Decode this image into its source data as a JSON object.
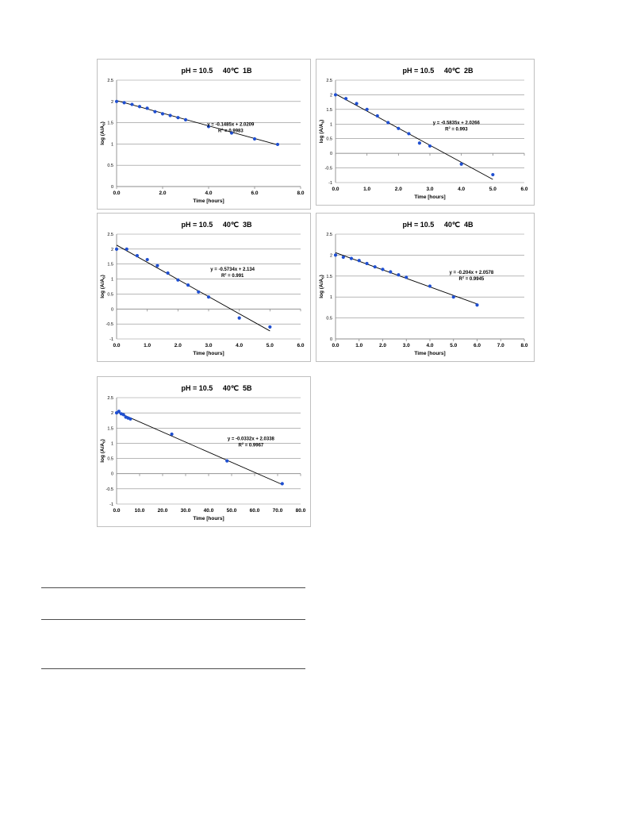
{
  "chart_data": [
    {
      "type": "scatter",
      "title": "pH = 10.5     40℃  1B",
      "xlabel": "Time [hours]",
      "ylabel": "log (A/A0)",
      "ylabel_sub": "0",
      "equation": "y = -0.1485x + 2.0209",
      "r2_value": " = 0.9983",
      "xlim": [
        0,
        8
      ],
      "ylim": [
        0,
        2.5
      ],
      "x_ticks": [
        "0.0",
        "2.0",
        "4.0",
        "6.0",
        "8.0"
      ],
      "x_tick_values": [
        0,
        2,
        4,
        6,
        8
      ],
      "y_ticks": [
        "0",
        "0.5",
        "1",
        "1.5",
        "2",
        "2.5"
      ],
      "y_tick_values": [
        0,
        0.5,
        1,
        1.5,
        2,
        2.5
      ],
      "x": [
        0,
        0.33,
        0.67,
        1.0,
        1.33,
        1.67,
        2.0,
        2.33,
        2.67,
        3.0,
        4.0,
        5.0,
        6.0,
        7.0
      ],
      "y": [
        2.0,
        1.97,
        1.93,
        1.88,
        1.84,
        1.76,
        1.71,
        1.67,
        1.62,
        1.57,
        1.41,
        1.26,
        1.12,
        0.99
      ],
      "trendline": {
        "slope": -0.1485,
        "intercept": 2.0209,
        "x_range": [
          0,
          7
        ]
      },
      "grid": true,
      "legend": "none"
    },
    {
      "type": "scatter",
      "title": "pH = 10.5     40℃  2B",
      "xlabel": "Time [hours]",
      "ylabel": "log (A/A0)",
      "ylabel_sub": "0",
      "equation": "y = -0.5835x + 2.0266",
      "r2_value": " = 0.993",
      "xlim": [
        0,
        6
      ],
      "ylim": [
        -1,
        2.5
      ],
      "x_ticks": [
        "0.0",
        "1.0",
        "2.0",
        "3.0",
        "4.0",
        "5.0",
        "6.0"
      ],
      "x_tick_values": [
        0,
        1,
        2,
        3,
        4,
        5,
        6
      ],
      "y_ticks": [
        "-1",
        "-0.5",
        "0",
        "0.5",
        "1",
        "1.5",
        "2",
        "2.5"
      ],
      "y_tick_values": [
        -1,
        -0.5,
        0,
        0.5,
        1,
        1.5,
        2,
        2.5
      ],
      "x": [
        0,
        0.33,
        0.67,
        1.0,
        1.33,
        1.67,
        2.0,
        2.33,
        2.67,
        3.0,
        4.0,
        5.0
      ],
      "y": [
        2.0,
        1.87,
        1.7,
        1.5,
        1.28,
        1.05,
        0.85,
        0.67,
        0.35,
        0.25,
        -0.37,
        -0.73
      ],
      "trendline": {
        "slope": -0.5835,
        "intercept": 2.0266,
        "x_range": [
          0,
          5
        ]
      },
      "grid": true,
      "legend": "none"
    },
    {
      "type": "scatter",
      "title": "pH = 10.5     40℃  3B",
      "xlabel": "Time [hours]",
      "ylabel": "log (A/A0)",
      "ylabel_sub": "0",
      "equation": "y = -0.5734x + 2.134",
      "r2_value": " = 0.991",
      "xlim": [
        0,
        6
      ],
      "ylim": [
        -1,
        2.5
      ],
      "x_ticks": [
        "0.0",
        "1.0",
        "2.0",
        "3.0",
        "4.0",
        "5.0",
        "6.0"
      ],
      "x_tick_values": [
        0,
        1,
        2,
        3,
        4,
        5,
        6
      ],
      "y_ticks": [
        "-1",
        "-0.5",
        "0",
        "0.5",
        "1",
        "1.5",
        "2",
        "2.5"
      ],
      "y_tick_values": [
        -1,
        -0.5,
        0,
        0.5,
        1,
        1.5,
        2,
        2.5
      ],
      "x": [
        0,
        0.33,
        0.67,
        1.0,
        1.33,
        1.67,
        2.0,
        2.33,
        2.67,
        3.0,
        4.0,
        5.0
      ],
      "y": [
        2.0,
        2.0,
        1.78,
        1.65,
        1.45,
        1.2,
        0.97,
        0.8,
        0.57,
        0.4,
        -0.3,
        -0.6
      ],
      "trendline": {
        "slope": -0.5734,
        "intercept": 2.134,
        "x_range": [
          0,
          5
        ]
      },
      "grid": true,
      "legend": "none"
    },
    {
      "type": "scatter",
      "title": "pH = 10.5     40℃  4B",
      "xlabel": "Time [hours]",
      "ylabel": "log (A/A0)",
      "ylabel_sub": "0",
      "equation": "y = -0.204x + 2.0578",
      "r2_value": " = 0.9945",
      "xlim": [
        0,
        8
      ],
      "ylim": [
        0,
        2.5
      ],
      "x_ticks": [
        "0.0",
        "1.0",
        "2.0",
        "3.0",
        "4.0",
        "5.0",
        "6.0",
        "7.0",
        "8.0"
      ],
      "x_tick_values": [
        0,
        1,
        2,
        3,
        4,
        5,
        6,
        7,
        8
      ],
      "y_ticks": [
        "0",
        "0.5",
        "1",
        "1.5",
        "2",
        "2.5"
      ],
      "y_tick_values": [
        0,
        0.5,
        1,
        1.5,
        2,
        2.5
      ],
      "x": [
        0,
        0.33,
        0.67,
        1.0,
        1.33,
        1.67,
        2.0,
        2.33,
        2.67,
        3.0,
        4.0,
        5.0,
        6.0
      ],
      "y": [
        2.0,
        1.95,
        1.92,
        1.87,
        1.8,
        1.72,
        1.66,
        1.6,
        1.53,
        1.47,
        1.26,
        1.0,
        0.81
      ],
      "trendline": {
        "slope": -0.204,
        "intercept": 2.0578,
        "x_range": [
          0,
          6
        ]
      },
      "grid": true,
      "legend": "none"
    },
    {
      "type": "scatter",
      "title": "pH = 10.5     40℃  5B",
      "xlabel": "Time [hours]",
      "ylabel": "log (A/A0)",
      "ylabel_sub": "0",
      "equation": "y = -0.0332x + 2.0338",
      "r2_value": " = 0.9967",
      "xlim": [
        0,
        80
      ],
      "ylim": [
        -1,
        2.5
      ],
      "x_ticks": [
        "0.0",
        "10.0",
        "20.0",
        "30.0",
        "40.0",
        "50.0",
        "60.0",
        "70.0",
        "80.0"
      ],
      "x_tick_values": [
        0,
        10,
        20,
        30,
        40,
        50,
        60,
        70,
        80
      ],
      "y_ticks": [
        "-1",
        "-0.5",
        "0",
        "0.5",
        "1",
        "1.5",
        "2",
        "2.5"
      ],
      "y_tick_values": [
        -1,
        -0.5,
        0,
        0.5,
        1,
        1.5,
        2,
        2.5
      ],
      "x": [
        0,
        1,
        2,
        3,
        4,
        5,
        6,
        24,
        48,
        72
      ],
      "y": [
        2.0,
        2.05,
        1.97,
        1.94,
        1.86,
        1.83,
        1.8,
        1.3,
        0.42,
        -0.33
      ],
      "trendline": {
        "slope": -0.0332,
        "intercept": 2.0338,
        "x_range": [
          0,
          72
        ]
      },
      "grid": true,
      "legend": "none"
    }
  ],
  "colors": {
    "marker": "#1f4fd1",
    "trendline": "#000000",
    "gridline": "#8c8c8c",
    "axis": "#8c8c8c",
    "text": "#000000",
    "panel_border": "#bfbfbf",
    "rule": "#4d4d4d"
  }
}
